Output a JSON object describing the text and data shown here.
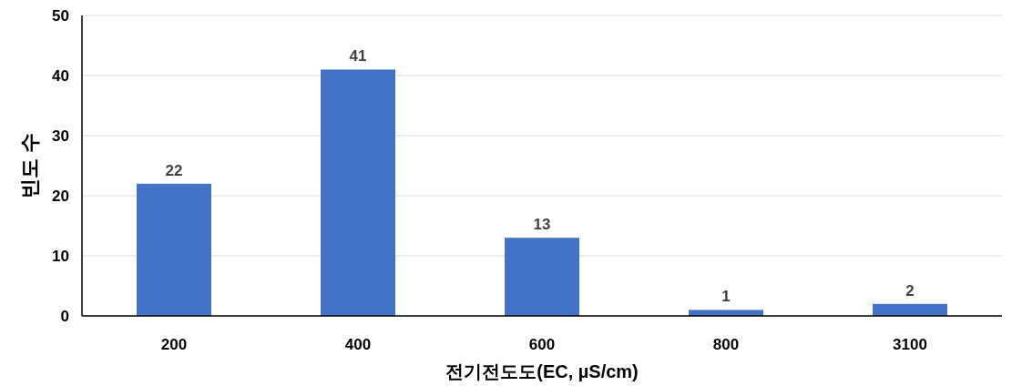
{
  "chart_data": {
    "type": "bar",
    "categories": [
      "200",
      "400",
      "600",
      "800",
      "3100"
    ],
    "values": [
      22,
      41,
      13,
      1,
      2
    ],
    "color": "#4472c4",
    "ylim": [
      0,
      50
    ],
    "yticks": [
      0,
      10,
      20,
      30,
      40,
      50
    ],
    "grid": "y",
    "data_labels": true,
    "xlabel": "전기전도도(EC, µS/cm)",
    "ylabel": "빈도 수"
  }
}
